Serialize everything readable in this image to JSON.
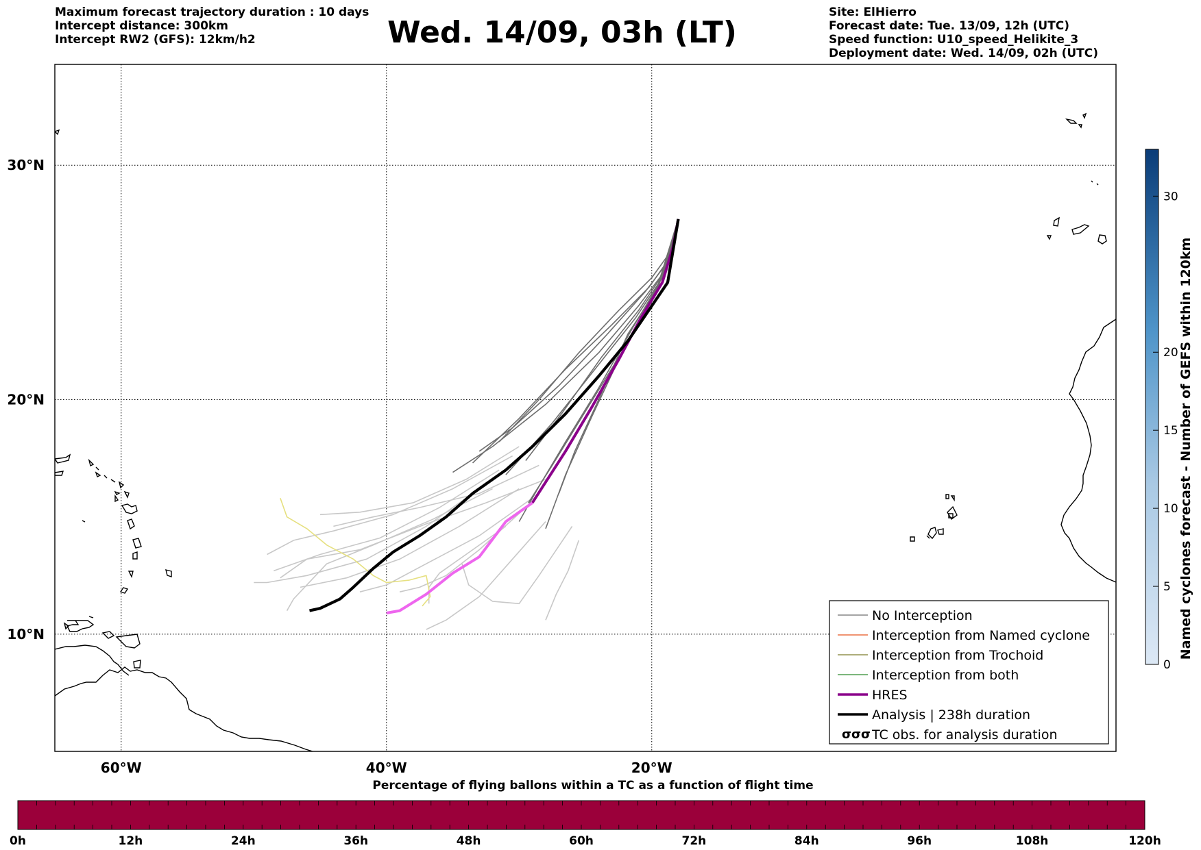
{
  "header": {
    "left_lines": [
      "Maximum forecast trajectory duration : 10 days",
      "Intercept distance: 300km",
      "Intercept RW2 (GFS):  12km/h2"
    ],
    "title": "Wed. 14/09, 03h (LT)",
    "right_lines": [
      "Site: ElHierro",
      "Forecast date: Tue. 13/09, 12h (UTC)",
      "Speed function: U10_speed_Helikite_3",
      "Deployment date: Wed. 14/09, 02h (UTC)"
    ]
  },
  "map": {
    "lon_range": [
      -65,
      15
    ],
    "lat_range": [
      5,
      34.3
    ],
    "lon_ticks": [
      {
        "lon": -60,
        "label": "60°W"
      },
      {
        "lon": -40,
        "label": "40°W"
      },
      {
        "lon": -20,
        "label": "20°W"
      }
    ],
    "lat_ticks": [
      {
        "lat": 30,
        "label": "30°N"
      },
      {
        "lat": 20,
        "label": "20°N"
      },
      {
        "lat": 10,
        "label": "10°N"
      }
    ],
    "site": {
      "name": "ElHierro",
      "lon": -18.0,
      "lat": 27.7
    },
    "colors": {
      "no_interception": "#6e6e6e",
      "no_interception_light": "#c8c8c8",
      "named_cyclone": "#e8541c",
      "trochoid": "#7c7c2a",
      "both": "#2e8b2e",
      "hres": "#8b008b",
      "hres_light": "#ee66ee",
      "analysis": "#000000",
      "yellow_track": "#e6e080"
    },
    "hres_track": [
      [
        -18.0,
        27.7
      ],
      [
        -18.4,
        26.5
      ],
      [
        -19.2,
        25.0
      ],
      [
        -20.8,
        23.5
      ],
      [
        -22.5,
        21.7
      ],
      [
        -24.5,
        19.7
      ],
      [
        -26.5,
        17.8
      ],
      [
        -29.0,
        15.6
      ],
      [
        -31.0,
        14.8
      ],
      [
        -33.0,
        13.3
      ],
      [
        -35.0,
        12.6
      ],
      [
        -37.0,
        11.7
      ],
      [
        -39.0,
        11.0
      ],
      [
        -40.0,
        10.9
      ]
    ],
    "analysis_track": [
      [
        -18.0,
        27.7
      ],
      [
        -18.8,
        25.0
      ],
      [
        -20.0,
        24.0
      ],
      [
        -21.8,
        22.5
      ],
      [
        -24.0,
        21.0
      ],
      [
        -26.5,
        19.4
      ],
      [
        -29.0,
        18.0
      ],
      [
        -31.0,
        17.0
      ],
      [
        -33.5,
        16.0
      ],
      [
        -35.5,
        15.0
      ],
      [
        -37.5,
        14.2
      ],
      [
        -39.5,
        13.5
      ],
      [
        -41.0,
        12.8
      ],
      [
        -42.5,
        12.0
      ],
      [
        -43.5,
        11.5
      ],
      [
        -45.0,
        11.1
      ],
      [
        -45.8,
        11.0
      ]
    ],
    "yellow_track": [
      [
        -48.0,
        15.8
      ],
      [
        -47.5,
        15.0
      ],
      [
        -46.0,
        14.5
      ],
      [
        -44.5,
        13.8
      ],
      [
        -42.5,
        13.2
      ],
      [
        -41.0,
        12.5
      ],
      [
        -40.0,
        12.2
      ],
      [
        -38.3,
        12.3
      ],
      [
        -37.0,
        12.5
      ],
      [
        -36.7,
        11.6
      ],
      [
        -37.3,
        11.2
      ]
    ],
    "ensemble_dark": [
      [
        [
          -18,
          27.7
        ],
        [
          -19.0,
          25.5
        ],
        [
          -21.0,
          24.0
        ],
        [
          -24.0,
          22.0
        ],
        [
          -28.0,
          19.8
        ],
        [
          -32.0,
          18.0
        ],
        [
          -35.0,
          16.9
        ]
      ],
      [
        [
          -18,
          27.7
        ],
        [
          -18.9,
          25.8
        ],
        [
          -20.5,
          24.6
        ],
        [
          -23.5,
          22.7
        ],
        [
          -27.0,
          20.6
        ],
        [
          -30.5,
          18.8
        ],
        [
          -33.0,
          17.8
        ]
      ],
      [
        [
          -18,
          27.7
        ],
        [
          -19.4,
          25.0
        ],
        [
          -21.5,
          23.0
        ],
        [
          -24.0,
          20.5
        ],
        [
          -26.5,
          18.2
        ],
        [
          -28.5,
          16.3
        ],
        [
          -30.0,
          14.8
        ]
      ],
      [
        [
          -18,
          27.7
        ],
        [
          -19.6,
          24.7
        ],
        [
          -22.0,
          22.3
        ],
        [
          -24.5,
          19.3
        ],
        [
          -26.5,
          16.8
        ],
        [
          -28.0,
          14.5
        ]
      ],
      [
        [
          -18,
          27.7
        ],
        [
          -18.7,
          26.0
        ],
        [
          -20.2,
          24.8
        ],
        [
          -23.0,
          23.2
        ],
        [
          -26.5,
          21.3
        ],
        [
          -30.0,
          19.2
        ],
        [
          -33.5,
          17.3
        ]
      ],
      [
        [
          -18,
          27.7
        ],
        [
          -19.2,
          25.2
        ],
        [
          -21.2,
          23.5
        ],
        [
          -24.0,
          21.5
        ],
        [
          -27.5,
          19.0
        ],
        [
          -31.0,
          16.8
        ]
      ],
      [
        [
          -18,
          27.7
        ],
        [
          -19.8,
          24.4
        ],
        [
          -22.5,
          21.8
        ],
        [
          -25.0,
          19.5
        ],
        [
          -27.5,
          17.2
        ],
        [
          -29.3,
          15.6
        ]
      ],
      [
        [
          -18,
          27.7
        ],
        [
          -18.6,
          26.3
        ],
        [
          -20.0,
          25.2
        ],
        [
          -22.5,
          23.8
        ],
        [
          -25.5,
          22.0
        ],
        [
          -28.5,
          20.0
        ],
        [
          -31.5,
          18.2
        ]
      ],
      [
        [
          -18,
          27.7
        ],
        [
          -19.1,
          25.4
        ],
        [
          -21.0,
          23.8
        ],
        [
          -23.8,
          21.8
        ],
        [
          -26.8,
          19.4
        ],
        [
          -29.5,
          17.4
        ]
      ],
      [
        [
          -18,
          27.7
        ],
        [
          -19.5,
          24.8
        ],
        [
          -21.8,
          22.8
        ],
        [
          -24.0,
          20.0
        ],
        [
          -25.8,
          17.8
        ],
        [
          -27.0,
          16.0
        ]
      ]
    ],
    "ensemble_light": [
      [
        [
          -30.0,
          18.0
        ],
        [
          -34.0,
          16.6
        ],
        [
          -38.0,
          15.6
        ],
        [
          -42.0,
          15.2
        ],
        [
          -45.0,
          15.1
        ]
      ],
      [
        [
          -30.5,
          17.6
        ],
        [
          -35.0,
          16.2
        ],
        [
          -39.5,
          15.1
        ],
        [
          -44.0,
          14.4
        ],
        [
          -47.0,
          14.0
        ],
        [
          -49.0,
          13.4
        ]
      ],
      [
        [
          -31.5,
          17.0
        ],
        [
          -36.0,
          15.4
        ],
        [
          -40.5,
          14.1
        ],
        [
          -45.0,
          13.4
        ],
        [
          -48.5,
          12.7
        ]
      ],
      [
        [
          -32.0,
          16.6
        ],
        [
          -37.0,
          14.6
        ],
        [
          -41.5,
          13.2
        ],
        [
          -46.0,
          12.5
        ],
        [
          -49.0,
          12.2
        ],
        [
          -50.0,
          12.2
        ]
      ],
      [
        [
          -30.0,
          16.2
        ],
        [
          -34.5,
          14.6
        ],
        [
          -39.0,
          13.2
        ],
        [
          -43.0,
          12.4
        ],
        [
          -46.5,
          12.0
        ]
      ],
      [
        [
          -29.5,
          15.4
        ],
        [
          -33.0,
          13.6
        ],
        [
          -35.5,
          12.5
        ],
        [
          -37.5,
          12.0
        ],
        [
          -39.0,
          11.8
        ]
      ],
      [
        [
          -28.0,
          14.8
        ],
        [
          -30.5,
          13.2
        ],
        [
          -33.0,
          11.6
        ],
        [
          -35.5,
          10.6
        ],
        [
          -37.0,
          10.2
        ]
      ],
      [
        [
          -26.0,
          14.6
        ],
        [
          -28.5,
          12.5
        ],
        [
          -30.0,
          11.3
        ],
        [
          -32.0,
          11.4
        ],
        [
          -33.8,
          12.1
        ],
        [
          -34.3,
          13.0
        ]
      ],
      [
        [
          -28.0,
          16.6
        ],
        [
          -32.5,
          15.6
        ],
        [
          -37.0,
          14.7
        ],
        [
          -42.0,
          13.6
        ],
        [
          -46.0,
          13.2
        ],
        [
          -48.0,
          12.4
        ]
      ],
      [
        [
          -32.0,
          16.2
        ],
        [
          -36.5,
          14.9
        ],
        [
          -41.0,
          13.8
        ],
        [
          -44.5,
          13.0
        ],
        [
          -47.0,
          11.5
        ],
        [
          -47.5,
          11.0
        ]
      ],
      [
        [
          -28.5,
          17.2
        ],
        [
          -33.0,
          16.0
        ],
        [
          -37.5,
          15.4
        ],
        [
          -41.0,
          15.0
        ],
        [
          -44.0,
          14.6
        ]
      ],
      [
        [
          -29.0,
          15.8
        ],
        [
          -33.0,
          14.2
        ],
        [
          -37.0,
          13.0
        ],
        [
          -40.0,
          12.1
        ],
        [
          -42.0,
          11.8
        ]
      ],
      [
        [
          -25.5,
          14.0
        ],
        [
          -26.3,
          12.7
        ],
        [
          -27.2,
          11.7
        ],
        [
          -28.0,
          10.6
        ]
      ],
      [
        [
          -31.0,
          14.6
        ],
        [
          -34.0,
          13.4
        ],
        [
          -36.0,
          12.6
        ],
        [
          -36.8,
          12.0
        ],
        [
          -36.8,
          11.3
        ]
      ]
    ]
  },
  "legend": {
    "items": [
      {
        "label": "No Interception",
        "style": "no_interception",
        "width": 1.2
      },
      {
        "label": "Interception from Named cyclone",
        "style": "named_cyclone",
        "width": 1.2
      },
      {
        "label": "Interception from Trochoid",
        "style": "trochoid",
        "width": 1.2
      },
      {
        "label": "Interception from both",
        "style": "both",
        "width": 1.2
      },
      {
        "label": "HRES",
        "style": "hres",
        "width": 3.5
      },
      {
        "label": "Analysis | 238h duration",
        "style": "analysis",
        "width": 3.5
      },
      {
        "label": "TC obs. for analysis duration",
        "style": "tc_symbol",
        "width": 0
      }
    ]
  },
  "colorbar_right": {
    "label": "Named cyclones forecast - Number of GEFS within 120km",
    "range": [
      0,
      33
    ],
    "ticks": [
      0,
      5,
      10,
      15,
      20,
      30
    ],
    "color_low": "#dce8f5",
    "color_high": "#0a3c78"
  },
  "colorbar_bottom": {
    "title": "Percentage of flying ballons within a TC as a function of flight time",
    "fill_color": "#9b003a",
    "fill_fraction": 1.0,
    "tick_labels": [
      "0h",
      "12h",
      "24h",
      "36h",
      "48h",
      "60h",
      "72h",
      "84h",
      "96h",
      "108h",
      "120h"
    ]
  }
}
